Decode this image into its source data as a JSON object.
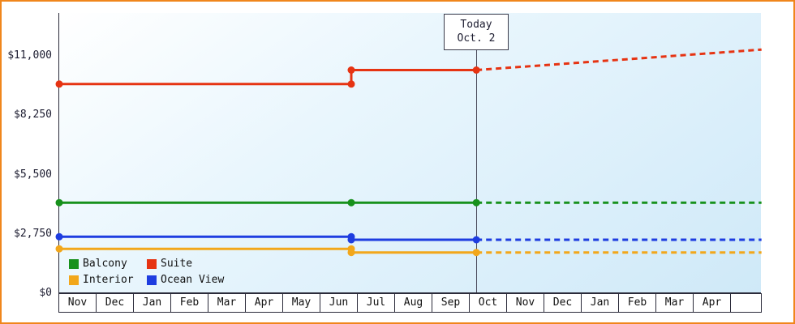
{
  "frame": {
    "border_color": "#f0861c"
  },
  "chart_data": {
    "type": "line",
    "title": "",
    "xlabel": "",
    "ylabel": "",
    "grid": false,
    "legend_position": "bottom-left-inside",
    "ylim": [
      0,
      13000
    ],
    "xlim_month_units": [
      0,
      18.43
    ],
    "y_tick_labels": [
      "$11,000",
      "$8,250",
      "$5,500",
      "$2,750",
      "$0"
    ],
    "y_tick_values": [
      11000,
      8250,
      5500,
      2750,
      0
    ],
    "x_tick_labels": [
      "Nov",
      "Dec",
      "Jan",
      "Feb",
      "Mar",
      "Apr",
      "May",
      "Jun",
      "Jul",
      "Aug",
      "Sep",
      "Oct",
      "Nov",
      "Dec",
      "Jan",
      "Feb",
      "Mar",
      "Apr"
    ],
    "today": {
      "label": "Today",
      "date": "Oct. 2",
      "month_pos": 10.94
    },
    "price_change_month_pos": 7.66,
    "series": [
      {
        "name": "Suite",
        "color": "#e63312",
        "solid": [
          [
            0,
            9700
          ],
          [
            7.66,
            9700
          ],
          [
            7.66,
            10350
          ],
          [
            10.94,
            10350
          ]
        ],
        "dashed": [
          [
            10.94,
            10350
          ],
          [
            18.42,
            11300
          ]
        ],
        "markers": [
          [
            0,
            9700
          ],
          [
            7.66,
            9700
          ],
          [
            7.66,
            10350
          ],
          [
            10.94,
            10350
          ]
        ]
      },
      {
        "name": "Balcony",
        "color": "#17911c",
        "solid": [
          [
            0,
            4200
          ],
          [
            10.94,
            4200
          ]
        ],
        "dashed": [
          [
            10.94,
            4200
          ],
          [
            18.42,
            4200
          ]
        ],
        "markers": [
          [
            0,
            4200
          ],
          [
            7.66,
            4200
          ],
          [
            10.94,
            4200
          ]
        ]
      },
      {
        "name": "Ocean View",
        "color": "#1e3de0",
        "solid": [
          [
            0,
            2620
          ],
          [
            7.66,
            2620
          ],
          [
            7.66,
            2480
          ],
          [
            10.94,
            2480
          ]
        ],
        "dashed": [
          [
            10.94,
            2480
          ],
          [
            18.42,
            2480
          ]
        ],
        "markers": [
          [
            0,
            2620
          ],
          [
            7.66,
            2620
          ],
          [
            7.66,
            2480
          ],
          [
            10.94,
            2480
          ]
        ]
      },
      {
        "name": "Interior",
        "color": "#f2a71b",
        "solid": [
          [
            0,
            2060
          ],
          [
            7.66,
            2060
          ],
          [
            7.66,
            1890
          ],
          [
            10.94,
            1890
          ]
        ],
        "dashed": [
          [
            10.94,
            1890
          ],
          [
            18.42,
            1890
          ]
        ],
        "markers": [
          [
            0,
            2060
          ],
          [
            7.66,
            2060
          ],
          [
            7.66,
            1890
          ],
          [
            10.94,
            1890
          ]
        ]
      }
    ],
    "legend": [
      {
        "label": "Balcony",
        "color": "#17911c"
      },
      {
        "label": "Suite",
        "color": "#e63312"
      },
      {
        "label": "Interior",
        "color": "#f2a71b"
      },
      {
        "label": "Ocean View",
        "color": "#1e3de0"
      }
    ]
  }
}
